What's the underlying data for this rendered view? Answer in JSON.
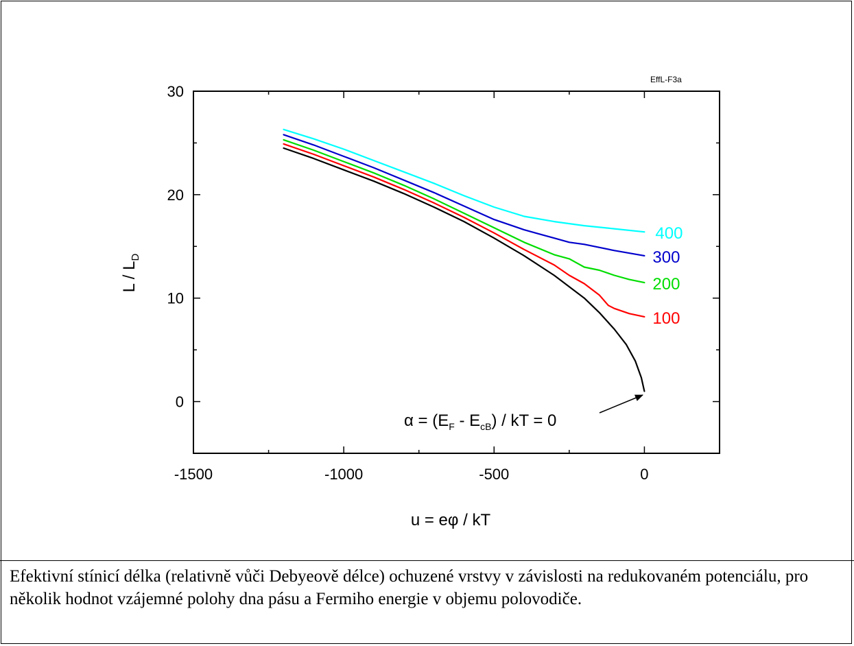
{
  "caption": "Efektivní stínicí délka (relativně vůči Debyeově délce) ochuzené vrstvy v závislosti na redukovaném potenciálu, pro několik hodnot vzájemné polohy dna pásu a Fermiho energie v objemu polovodiče.",
  "chart_data": {
    "type": "line",
    "title": "",
    "figure_id": "EffL-F3a",
    "xlabel": "u = eφ / kT",
    "ylabel": "L / L_D",
    "xlim": [
      -1500,
      250
    ],
    "ylim": [
      -5,
      30
    ],
    "x_ticks": [
      -1500,
      -1000,
      -500,
      0
    ],
    "x_tick_labels": [
      "-1500",
      "-1000",
      "-500",
      "0"
    ],
    "y_ticks": [
      0,
      10,
      20,
      30
    ],
    "y_tick_labels": [
      "0",
      "10",
      "20",
      "30"
    ],
    "grid": false,
    "series": [
      {
        "name": "400",
        "color": "#00ffff",
        "points": [
          [
            -1200,
            26.3
          ],
          [
            -1100,
            25.4
          ],
          [
            -1000,
            24.4
          ],
          [
            -900,
            23.3
          ],
          [
            -800,
            22.2
          ],
          [
            -700,
            21.1
          ],
          [
            -600,
            19.9
          ],
          [
            -500,
            18.8
          ],
          [
            -400,
            17.9
          ],
          [
            -300,
            17.4
          ],
          [
            -200,
            17.0
          ],
          [
            -100,
            16.7
          ],
          [
            0,
            16.4
          ]
        ]
      },
      {
        "name": "300",
        "color": "#0000cc",
        "points": [
          [
            -1200,
            25.8
          ],
          [
            -1100,
            24.8
          ],
          [
            -1000,
            23.7
          ],
          [
            -900,
            22.6
          ],
          [
            -800,
            21.4
          ],
          [
            -700,
            20.2
          ],
          [
            -600,
            18.9
          ],
          [
            -500,
            17.6
          ],
          [
            -400,
            16.6
          ],
          [
            -350,
            16.2
          ],
          [
            -300,
            15.8
          ],
          [
            -250,
            15.4
          ],
          [
            -200,
            15.2
          ],
          [
            -100,
            14.6
          ],
          [
            0,
            14.1
          ]
        ]
      },
      {
        "name": "200",
        "color": "#00dd00",
        "points": [
          [
            -1200,
            25.3
          ],
          [
            -1100,
            24.3
          ],
          [
            -1000,
            23.2
          ],
          [
            -900,
            22.1
          ],
          [
            -800,
            20.9
          ],
          [
            -700,
            19.6
          ],
          [
            -600,
            18.2
          ],
          [
            -500,
            16.8
          ],
          [
            -400,
            15.4
          ],
          [
            -300,
            14.2
          ],
          [
            -250,
            13.8
          ],
          [
            -200,
            13.0
          ],
          [
            -150,
            12.7
          ],
          [
            -100,
            12.2
          ],
          [
            -50,
            11.8
          ],
          [
            0,
            11.5
          ]
        ]
      },
      {
        "name": "100",
        "color": "#ff0000",
        "points": [
          [
            -1200,
            24.9
          ],
          [
            -1100,
            23.9
          ],
          [
            -1000,
            22.8
          ],
          [
            -900,
            21.7
          ],
          [
            -800,
            20.5
          ],
          [
            -700,
            19.2
          ],
          [
            -600,
            17.8
          ],
          [
            -500,
            16.3
          ],
          [
            -400,
            14.7
          ],
          [
            -300,
            13.2
          ],
          [
            -250,
            12.2
          ],
          [
            -200,
            11.4
          ],
          [
            -150,
            10.3
          ],
          [
            -120,
            9.3
          ],
          [
            -100,
            9.0
          ],
          [
            -50,
            8.5
          ],
          [
            0,
            8.2
          ]
        ]
      },
      {
        "name": "0",
        "color": "#000000",
        "points": [
          [
            -1200,
            24.5
          ],
          [
            -1100,
            23.5
          ],
          [
            -1000,
            22.4
          ],
          [
            -900,
            21.3
          ],
          [
            -800,
            20.1
          ],
          [
            -700,
            18.8
          ],
          [
            -600,
            17.4
          ],
          [
            -500,
            15.8
          ],
          [
            -400,
            14.1
          ],
          [
            -300,
            12.2
          ],
          [
            -200,
            10.0
          ],
          [
            -150,
            8.6
          ],
          [
            -100,
            7.0
          ],
          [
            -60,
            5.5
          ],
          [
            -30,
            3.9
          ],
          [
            -10,
            2.3
          ],
          [
            0,
            1.0
          ]
        ]
      }
    ],
    "series_labels": [
      "400",
      "300",
      "200",
      "100"
    ],
    "annotation": {
      "prefix": "α = (E",
      "sub1": "F",
      "mid": " - E",
      "sub2": "cB",
      "suffix": ") / kT = 0",
      "arrow_to": [
        0,
        1.0
      ]
    }
  }
}
